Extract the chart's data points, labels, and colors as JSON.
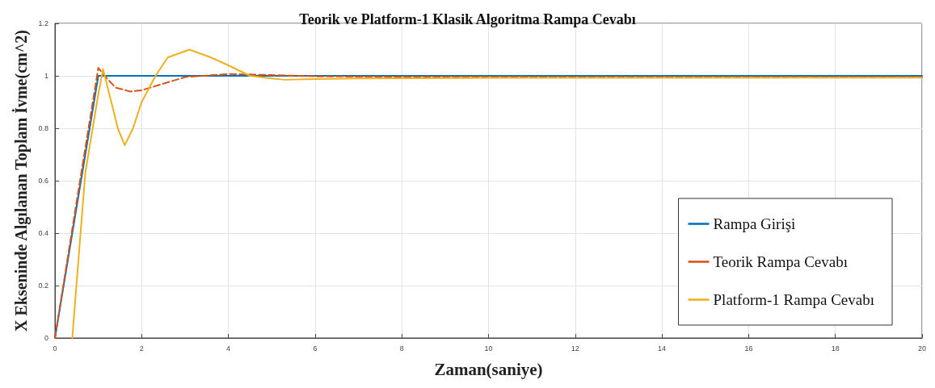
{
  "chart_data": {
    "type": "line",
    "title": "Teorik ve Platform-1 Klasik Algoritma Rampa Cevabı",
    "xlabel": "Zaman(saniye)",
    "ylabel": "X Ekseninde Algılanan Toplam İvme(cm^2)",
    "xlim": [
      0,
      20
    ],
    "xticks": [
      0,
      2,
      4,
      6,
      8,
      10,
      12,
      14,
      16,
      18,
      20
    ],
    "ylim": [
      0,
      1.2
    ],
    "yticks": [
      0,
      0.2,
      0.4,
      0.6,
      0.8,
      1,
      1.2
    ],
    "grid": true,
    "legend": "bottom right",
    "marker": "none",
    "series": [
      {
        "name": "Rampa Girişi",
        "color": "#0072bd",
        "line_style": "solid",
        "x": [
          0,
          1,
          20
        ],
        "values": [
          0,
          1,
          1
        ]
      },
      {
        "name": "Teorik Rampa Cevabı",
        "color": "#d95319",
        "line_style": "dashed",
        "x": [
          0,
          0.5,
          1,
          1.2,
          1.4,
          1.74,
          2,
          2.5,
          3,
          4,
          5,
          6,
          8,
          20
        ],
        "values": [
          0,
          0.52,
          1.03,
          0.99,
          0.955,
          0.94,
          0.945,
          0.97,
          0.995,
          1.007,
          1.003,
          0.998,
          0.996,
          0.995
        ]
      },
      {
        "name": "Platform-1 Rampa Cevabı",
        "color": "#edb120",
        "line_style": "solid",
        "x": [
          0.4,
          0.7,
          1,
          1.11,
          1.3,
          1.45,
          1.61,
          1.8,
          2,
          2.32,
          2.6,
          3.1,
          3.6,
          4,
          4.5,
          5,
          5.3,
          6,
          7,
          10,
          20
        ],
        "values": [
          0,
          0.63,
          0.93,
          1.025,
          0.9,
          0.8,
          0.735,
          0.8,
          0.9,
          1,
          1.07,
          1.1,
          1.07,
          1.04,
          1,
          0.99,
          0.985,
          0.988,
          0.99,
          0.992,
          0.993
        ]
      }
    ]
  }
}
